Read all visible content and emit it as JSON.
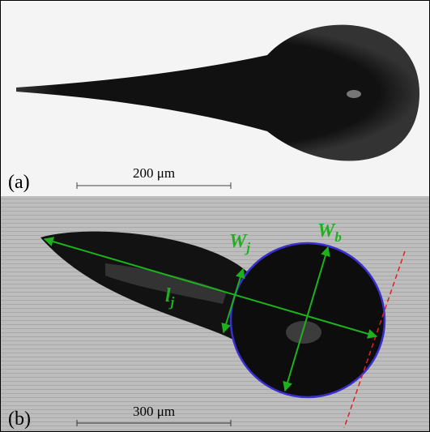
{
  "panel_a": {
    "label": "(a)",
    "scale_bar": "200 μm"
  },
  "panel_b": {
    "label": "(b)",
    "scale_bar": "300 μm",
    "annotations": {
      "jet_width": {
        "symbol": "W",
        "subscript": "j"
      },
      "bulb_width": {
        "symbol": "W",
        "subscript": "b"
      },
      "jet_length": {
        "symbol": "l",
        "subscript": "j"
      }
    }
  }
}
